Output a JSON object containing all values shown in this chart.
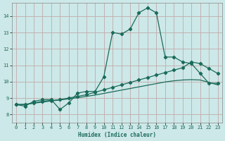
{
  "xlabel": "Humidex (Indice chaleur)",
  "xlim": [
    -0.5,
    23.5
  ],
  "ylim": [
    7.5,
    14.8
  ],
  "yticks": [
    8,
    9,
    10,
    11,
    12,
    13,
    14
  ],
  "xticks": [
    0,
    1,
    2,
    3,
    4,
    5,
    6,
    7,
    8,
    9,
    10,
    11,
    12,
    13,
    14,
    15,
    16,
    17,
    18,
    19,
    20,
    21,
    22,
    23
  ],
  "bg_color": "#cde8e8",
  "grid_color": "#b8c8c8",
  "line_color": "#1a6b5a",
  "line1_y": [
    8.6,
    8.5,
    8.8,
    8.9,
    8.9,
    8.3,
    8.7,
    9.3,
    9.4,
    9.4,
    10.3,
    13.0,
    12.9,
    13.2,
    14.2,
    14.5,
    14.2,
    11.5,
    11.5,
    11.2,
    11.1,
    10.5,
    9.9,
    9.9
  ],
  "line2_y": [
    8.6,
    8.6,
    8.7,
    8.8,
    8.85,
    8.9,
    9.0,
    9.1,
    9.2,
    9.35,
    9.5,
    9.65,
    9.8,
    9.95,
    10.1,
    10.25,
    10.4,
    10.55,
    10.7,
    10.85,
    11.2,
    11.1,
    10.8,
    10.5
  ],
  "line3_y": [
    8.6,
    8.62,
    8.68,
    8.75,
    8.82,
    8.88,
    8.95,
    9.02,
    9.1,
    9.18,
    9.28,
    9.38,
    9.48,
    9.58,
    9.68,
    9.78,
    9.88,
    9.98,
    10.05,
    10.1,
    10.12,
    10.1,
    9.95,
    9.8
  ]
}
